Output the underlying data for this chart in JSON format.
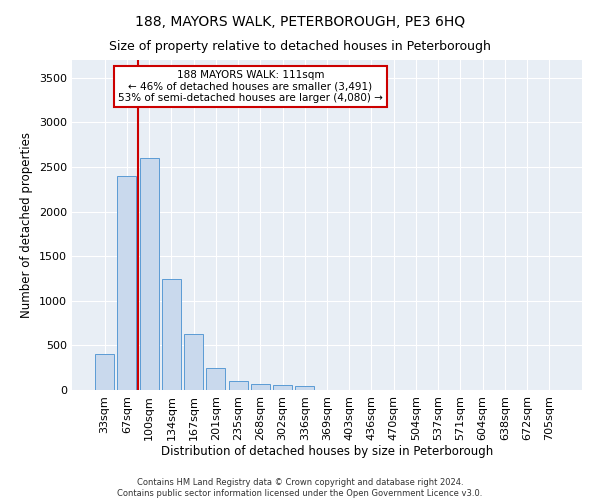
{
  "title": "188, MAYORS WALK, PETERBOROUGH, PE3 6HQ",
  "subtitle": "Size of property relative to detached houses in Peterborough",
  "xlabel": "Distribution of detached houses by size in Peterborough",
  "ylabel": "Number of detached properties",
  "categories": [
    "33sqm",
    "67sqm",
    "100sqm",
    "134sqm",
    "167sqm",
    "201sqm",
    "235sqm",
    "268sqm",
    "302sqm",
    "336sqm",
    "369sqm",
    "403sqm",
    "436sqm",
    "470sqm",
    "504sqm",
    "537sqm",
    "571sqm",
    "604sqm",
    "638sqm",
    "672sqm",
    "705sqm"
  ],
  "values": [
    400,
    2400,
    2600,
    1250,
    630,
    250,
    100,
    70,
    60,
    50,
    0,
    0,
    0,
    0,
    0,
    0,
    0,
    0,
    0,
    0,
    0
  ],
  "bar_color": "#c9d9ed",
  "bar_edge_color": "#5b9bd5",
  "redline_x": 1.5,
  "annotation_text": "188 MAYORS WALK: 111sqm\n← 46% of detached houses are smaller (3,491)\n53% of semi-detached houses are larger (4,080) →",
  "annotation_box_color": "#ffffff",
  "annotation_box_edge": "#cc0000",
  "redline_color": "#cc0000",
  "ylim": [
    0,
    3700
  ],
  "yticks": [
    0,
    500,
    1000,
    1500,
    2000,
    2500,
    3000,
    3500
  ],
  "background_color": "#e8eef5",
  "footer_line1": "Contains HM Land Registry data © Crown copyright and database right 2024.",
  "footer_line2": "Contains public sector information licensed under the Open Government Licence v3.0.",
  "title_fontsize": 10,
  "subtitle_fontsize": 9,
  "xlabel_fontsize": 8.5,
  "ylabel_fontsize": 8.5,
  "tick_fontsize": 8,
  "annotation_fontsize": 7.5,
  "footer_fontsize": 6
}
